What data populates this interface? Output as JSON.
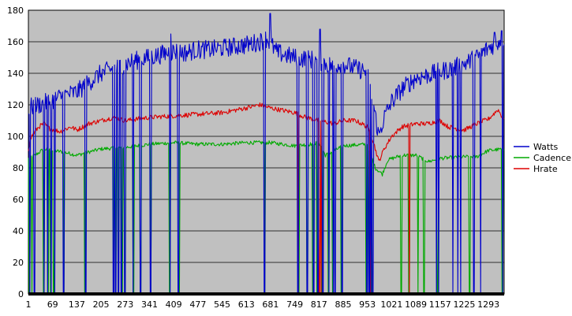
{
  "chart_data": {
    "type": "line",
    "x_range": [
      1,
      1337
    ],
    "x_ticks": [
      "1",
      "69",
      "137",
      "205",
      "273",
      "341",
      "409",
      "477",
      "545",
      "613",
      "681",
      "749",
      "817",
      "885",
      "953",
      "1021",
      "1089",
      "1157",
      "1225",
      "1293"
    ],
    "y_ticks": [
      "0",
      "20",
      "40",
      "60",
      "80",
      "100",
      "120",
      "140",
      "160",
      "180"
    ],
    "ylim": [
      0,
      180
    ],
    "grid": "horizontal",
    "legend": "right",
    "series": [
      {
        "name": "Watts",
        "color": "#0000cc",
        "base": [
          [
            1,
            118
          ],
          [
            30,
            120
          ],
          [
            60,
            122
          ],
          [
            100,
            126
          ],
          [
            137,
            128
          ],
          [
            170,
            134
          ],
          [
            205,
            140
          ],
          [
            240,
            143
          ],
          [
            273,
            146
          ],
          [
            300,
            148
          ],
          [
            341,
            150
          ],
          [
            375,
            152
          ],
          [
            409,
            154
          ],
          [
            440,
            153
          ],
          [
            477,
            155
          ],
          [
            510,
            155
          ],
          [
            545,
            156
          ],
          [
            580,
            157
          ],
          [
            613,
            158
          ],
          [
            650,
            160
          ],
          [
            670,
            162
          ],
          [
            700,
            153
          ],
          [
            749,
            150
          ],
          [
            790,
            149
          ],
          [
            817,
            148
          ],
          [
            850,
            145
          ],
          [
            885,
            146
          ],
          [
            920,
            143
          ],
          [
            953,
            141
          ],
          [
            970,
            120
          ],
          [
            985,
            100
          ],
          [
            1000,
            112
          ],
          [
            1021,
            122
          ],
          [
            1050,
            130
          ],
          [
            1089,
            137
          ],
          [
            1110,
            138
          ],
          [
            1157,
            141
          ],
          [
            1190,
            143
          ],
          [
            1225,
            146
          ],
          [
            1260,
            150
          ],
          [
            1293,
            156
          ],
          [
            1320,
            160
          ],
          [
            1337,
            162
          ]
        ],
        "noise": 6,
        "spikes": [
          [
            680,
            178
          ],
          [
            820,
            168
          ],
          [
            1310,
            166
          ],
          [
            1330,
            167
          ],
          [
            400,
            165
          ]
        ],
        "drops": [
          5,
          18,
          45,
          55,
          65,
          75,
          100,
          162,
          240,
          246,
          254,
          262,
          272,
          295,
          316,
          344,
          399,
          422,
          664,
          758,
          784,
          802,
          814,
          828,
          845,
          857,
          862,
          882,
          952,
          958,
          963,
          968,
          1147,
          1153,
          1193,
          1207,
          1215,
          1252,
          1271,
          1333
        ]
      },
      {
        "name": "Cadence",
        "color": "#00aa00",
        "base": [
          [
            1,
            86
          ],
          [
            20,
            88
          ],
          [
            45,
            92
          ],
          [
            70,
            91
          ],
          [
            100,
            90
          ],
          [
            137,
            88
          ],
          [
            170,
            90
          ],
          [
            205,
            92
          ],
          [
            273,
            93
          ],
          [
            341,
            95
          ],
          [
            409,
            96
          ],
          [
            477,
            95
          ],
          [
            545,
            95
          ],
          [
            613,
            96
          ],
          [
            681,
            96
          ],
          [
            749,
            94
          ],
          [
            790,
            95
          ],
          [
            817,
            96
          ],
          [
            835,
            88
          ],
          [
            885,
            94
          ],
          [
            953,
            95
          ],
          [
            975,
            80
          ],
          [
            995,
            76
          ],
          [
            1010,
            85
          ],
          [
            1050,
            88
          ],
          [
            1089,
            88
          ],
          [
            1125,
            84
          ],
          [
            1157,
            86
          ],
          [
            1225,
            87
          ],
          [
            1260,
            87
          ],
          [
            1293,
            91
          ],
          [
            1337,
            92
          ]
        ],
        "noise": 1.2,
        "spikes": [],
        "drops": [
          4,
          11,
          44,
          56,
          63,
          72,
          101,
          160,
          241,
          247,
          253,
          264,
          272,
          296,
          316,
          345,
          398,
          425,
          665,
          760,
          784,
          800,
          812,
          826,
          844,
          856,
          880,
          950,
          957,
          964,
          1048,
          1070,
          1095,
          1112,
          1150,
          1240,
          1332
        ]
      },
      {
        "name": "Hrate",
        "color": "#dd0000",
        "base": [
          [
            1,
            92
          ],
          [
            10,
            100
          ],
          [
            30,
            106
          ],
          [
            45,
            108
          ],
          [
            60,
            105
          ],
          [
            90,
            103
          ],
          [
            120,
            106
          ],
          [
            137,
            104
          ],
          [
            170,
            108
          ],
          [
            205,
            110
          ],
          [
            240,
            112
          ],
          [
            273,
            110
          ],
          [
            341,
            112
          ],
          [
            409,
            113
          ],
          [
            477,
            114
          ],
          [
            545,
            115
          ],
          [
            613,
            118
          ],
          [
            650,
            120
          ],
          [
            681,
            118
          ],
          [
            749,
            115
          ],
          [
            780,
            112
          ],
          [
            800,
            111
          ],
          [
            817,
            110
          ],
          [
            840,
            109
          ],
          [
            860,
            108
          ],
          [
            885,
            110
          ],
          [
            920,
            110
          ],
          [
            953,
            106
          ],
          [
            968,
            98
          ],
          [
            985,
            84
          ],
          [
            1000,
            92
          ],
          [
            1021,
            100
          ],
          [
            1050,
            106
          ],
          [
            1089,
            108
          ],
          [
            1120,
            108
          ],
          [
            1157,
            110
          ],
          [
            1180,
            106
          ],
          [
            1225,
            104
          ],
          [
            1260,
            108
          ],
          [
            1293,
            111
          ],
          [
            1320,
            117
          ],
          [
            1337,
            110
          ]
        ],
        "noise": 1.5,
        "spikes": [],
        "drops": [
          759,
          818,
          823,
          962,
          1071
        ]
      }
    ]
  }
}
